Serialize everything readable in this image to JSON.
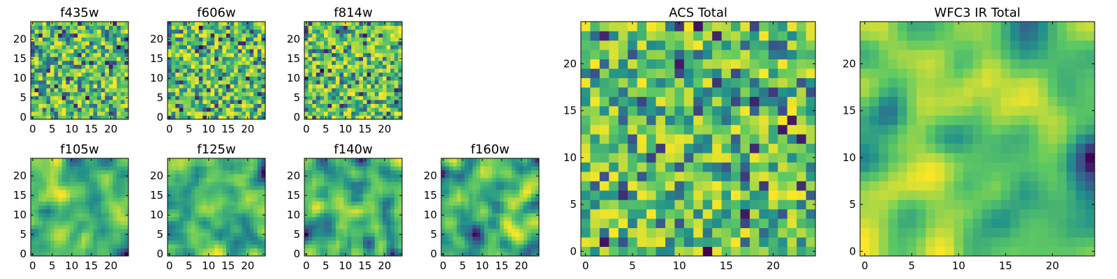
{
  "colormap": [
    "#440154",
    "#3b528b",
    "#21918c",
    "#5ec962",
    "#fde725"
  ],
  "chart_data": [
    {
      "type": "heatmap",
      "title": "f435w",
      "grid_size": 25,
      "xticks": [
        0,
        5,
        10,
        15,
        20
      ],
      "yticks": [
        0,
        5,
        10,
        15,
        20
      ],
      "xlim": [
        0,
        24
      ],
      "ylim": [
        0,
        24
      ],
      "texture": "noise",
      "smoothing": 0,
      "seed": 11
    },
    {
      "type": "heatmap",
      "title": "f606w",
      "grid_size": 25,
      "xticks": [
        0,
        5,
        10,
        15,
        20
      ],
      "yticks": [
        0,
        5,
        10,
        15,
        20
      ],
      "xlim": [
        0,
        24
      ],
      "ylim": [
        0,
        24
      ],
      "texture": "noise",
      "smoothing": 0,
      "seed": 23
    },
    {
      "type": "heatmap",
      "title": "f814w",
      "grid_size": 25,
      "xticks": [
        0,
        5,
        10,
        15,
        20
      ],
      "yticks": [
        0,
        5,
        10,
        15,
        20
      ],
      "xlim": [
        0,
        24
      ],
      "ylim": [
        0,
        24
      ],
      "texture": "noise",
      "smoothing": 0,
      "seed": 37
    },
    {
      "type": "heatmap",
      "title": "f105w",
      "grid_size": 25,
      "xticks": [
        0,
        5,
        10,
        15,
        20
      ],
      "yticks": [
        0,
        5,
        10,
        15,
        20
      ],
      "xlim": [
        0,
        24
      ],
      "ylim": [
        0,
        24
      ],
      "texture": "smooth",
      "smoothing": 2,
      "seed": 41
    },
    {
      "type": "heatmap",
      "title": "f125w",
      "grid_size": 25,
      "xticks": [
        0,
        5,
        10,
        15,
        20
      ],
      "yticks": [
        0,
        5,
        10,
        15,
        20
      ],
      "xlim": [
        0,
        24
      ],
      "ylim": [
        0,
        24
      ],
      "texture": "smooth",
      "smoothing": 2,
      "seed": 53
    },
    {
      "type": "heatmap",
      "title": "f140w",
      "grid_size": 25,
      "xticks": [
        0,
        5,
        10,
        15,
        20
      ],
      "yticks": [
        0,
        5,
        10,
        15,
        20
      ],
      "xlim": [
        0,
        24
      ],
      "ylim": [
        0,
        24
      ],
      "texture": "smooth",
      "smoothing": 2,
      "seed": 67
    },
    {
      "type": "heatmap",
      "title": "f160w",
      "grid_size": 25,
      "xticks": [
        0,
        5,
        10,
        15,
        20
      ],
      "yticks": [
        0,
        5,
        10,
        15,
        20
      ],
      "xlim": [
        0,
        24
      ],
      "ylim": [
        0,
        24
      ],
      "texture": "smooth",
      "smoothing": 2,
      "seed": 79
    },
    {
      "type": "heatmap",
      "title": "ACS Total",
      "grid_size": 25,
      "xticks": [
        0,
        5,
        10,
        15,
        20
      ],
      "yticks": [
        0,
        5,
        10,
        15,
        20
      ],
      "xlim": [
        0,
        24
      ],
      "ylim": [
        0,
        24
      ],
      "texture": "noise",
      "smoothing": 0,
      "seed": 97
    },
    {
      "type": "heatmap",
      "title": "WFC3 IR Total",
      "grid_size": 25,
      "xticks": [
        0,
        5,
        10,
        15,
        20
      ],
      "yticks": [
        0,
        5,
        10,
        15,
        20
      ],
      "xlim": [
        0,
        24
      ],
      "ylim": [
        0,
        24
      ],
      "texture": "smooth",
      "smoothing": 3,
      "seed": 113
    }
  ]
}
